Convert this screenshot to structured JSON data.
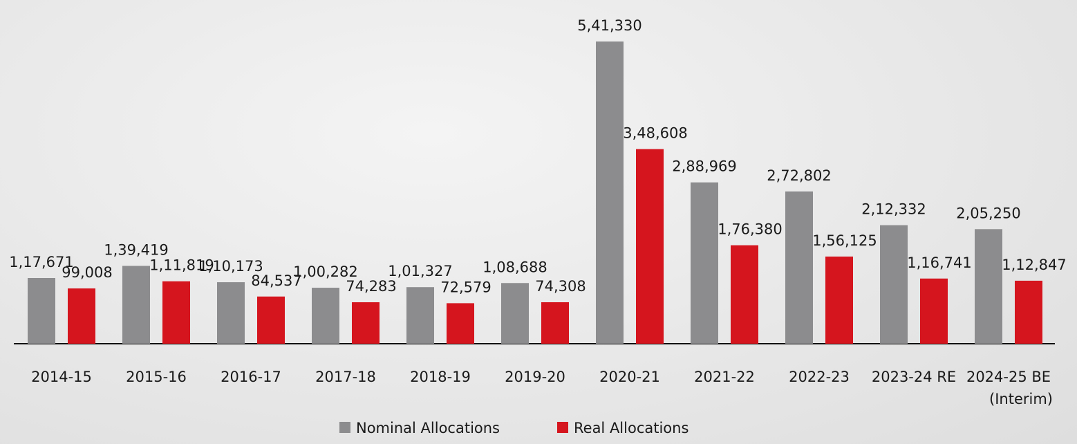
{
  "chart_data": {
    "type": "bar",
    "categories": [
      "2014-15",
      "2015-16",
      "2016-17",
      "2017-18",
      "2018-19",
      "2019-20",
      "2020-21",
      "2021-22",
      "2022-23",
      "2023-24 RE",
      "2024-25 BE\n(Interim)"
    ],
    "series": [
      {
        "name": "Nominal Allocations",
        "color": "#8c8c8e",
        "values": [
          117671,
          139419,
          110173,
          100282,
          101327,
          108688,
          541330,
          288969,
          272802,
          212332,
          205250
        ],
        "value_labels": [
          "1,17,671",
          "1,39,419",
          "1,10,173",
          "1,00,282",
          "1,01,327",
          "1,08,688",
          "5,41,330",
          "2,88,969",
          "2,72,802",
          "2,12,332",
          "2,05,250"
        ]
      },
      {
        "name": "Real Allocations",
        "color": "#d5151e",
        "values": [
          99008,
          111819,
          84537,
          74283,
          72579,
          74308,
          348608,
          176380,
          156125,
          116741,
          112847
        ],
        "value_labels": [
          "99,008",
          "1,11,819",
          "84,537",
          "74,283",
          "72,579",
          "74,308",
          "3,48,608",
          "1,76,380",
          "1,56,125",
          "1,16,741",
          "1,12,847"
        ]
      }
    ],
    "legend": "bottom"
  }
}
